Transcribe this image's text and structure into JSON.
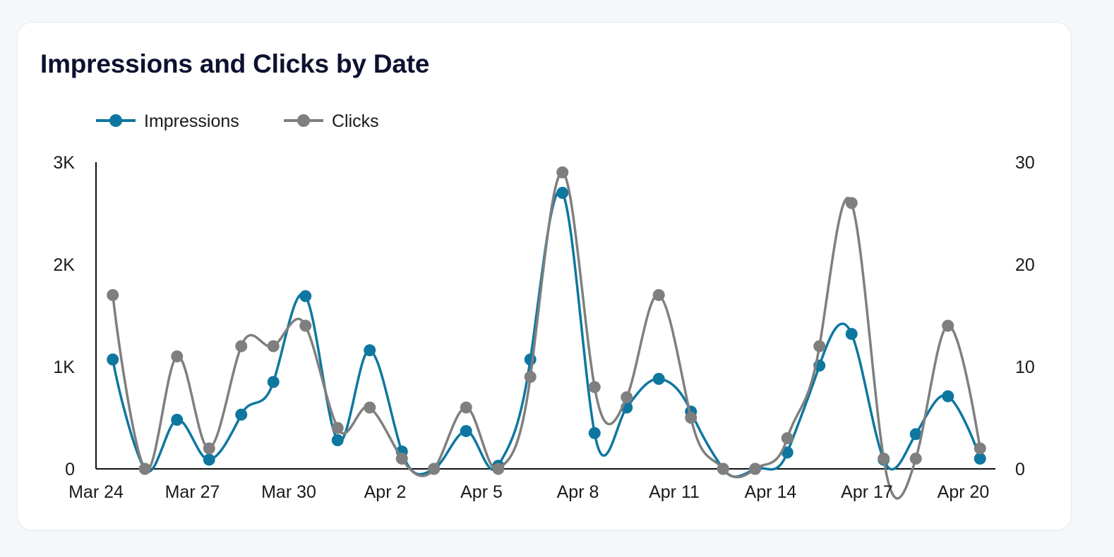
{
  "title": "Impressions and Clicks by Date",
  "chart_data": {
    "type": "line",
    "title": "Impressions and Clicks by Date",
    "x_tick_labels": [
      "Mar 24",
      "Mar 27",
      "Mar 30",
      "Apr 2",
      "Apr 5",
      "Apr 8",
      "Apr 11",
      "Apr 14",
      "Apr 17",
      "Apr 20"
    ],
    "x_tick_dates": [
      "Mar 24",
      "Mar 27",
      "Mar 30",
      "Apr 2",
      "Apr 5",
      "Apr 8",
      "Apr 11",
      "Apr 14",
      "Apr 17",
      "Apr 20"
    ],
    "dates": [
      "Mar 25",
      "Mar 26",
      "Mar 27",
      "Mar 28",
      "Mar 29",
      "Mar 30",
      "Mar 31",
      "Apr 1",
      "Apr 2",
      "Apr 3",
      "Apr 4",
      "Apr 5",
      "Apr 6",
      "Apr 7",
      "Apr 8",
      "Apr 9",
      "Apr 10",
      "Apr 11",
      "Apr 12",
      "Apr 13",
      "Apr 14",
      "Apr 15",
      "Apr 16",
      "Apr 17",
      "Apr 18",
      "Apr 19",
      "Apr 20",
      "Apr 21"
    ],
    "y_left": {
      "ticks": [
        0,
        1000,
        2000,
        3000
      ],
      "tick_labels": [
        "0",
        "1K",
        "2K",
        "3K"
      ],
      "range": [
        0,
        3000
      ]
    },
    "y_right": {
      "ticks": [
        0,
        10,
        20,
        30
      ],
      "tick_labels": [
        "0",
        "10",
        "20",
        "30"
      ],
      "range": [
        0,
        30
      ]
    },
    "legend_position": "top-left",
    "grid": false,
    "series": [
      {
        "name": "Impressions",
        "axis": "left",
        "color": "#0e77a0",
        "values": [
          1070,
          0,
          480,
          90,
          530,
          850,
          1690,
          280,
          1160,
          170,
          0,
          370,
          30,
          1070,
          2700,
          350,
          600,
          880,
          560,
          0,
          0,
          160,
          1010,
          1320,
          90,
          340,
          710,
          100
        ]
      },
      {
        "name": "Clicks",
        "axis": "right",
        "color": "#7f7f7f",
        "values": [
          17,
          0,
          11,
          2,
          12,
          12,
          14,
          4,
          6,
          1,
          0,
          6,
          0,
          9,
          29,
          8,
          7,
          17,
          5,
          0,
          0,
          3,
          12,
          26,
          1,
          1,
          14,
          2
        ]
      }
    ]
  }
}
